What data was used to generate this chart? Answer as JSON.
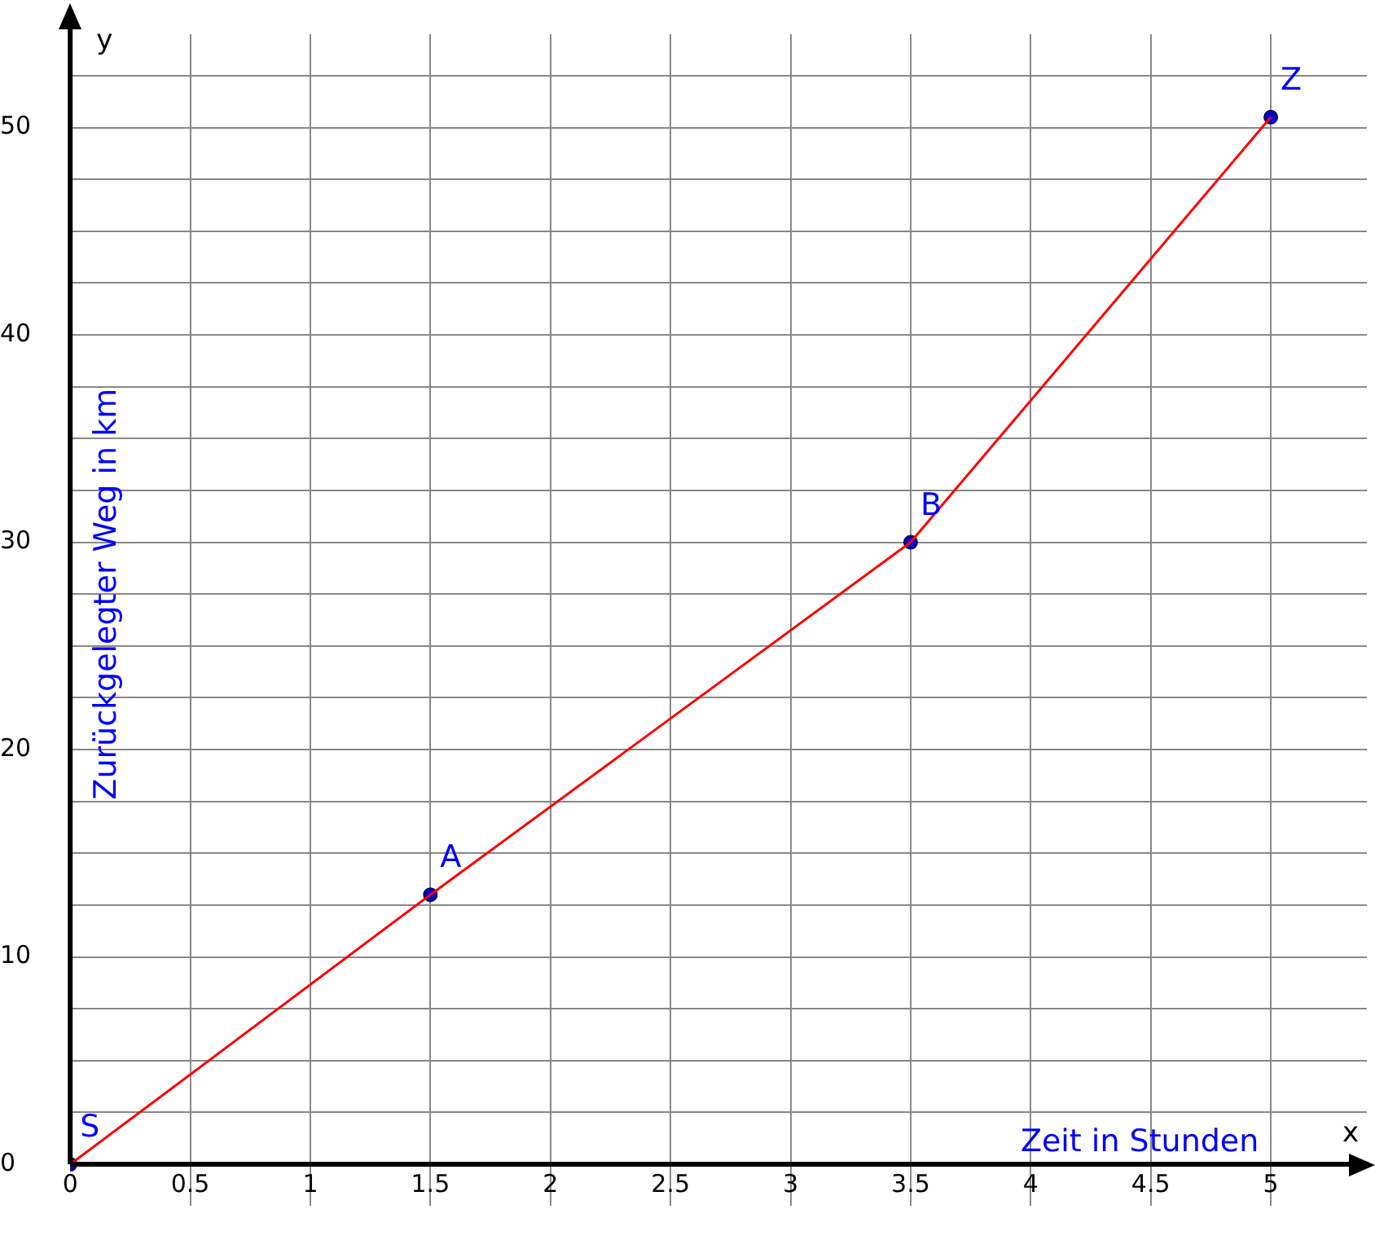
{
  "chart_data": {
    "type": "line",
    "xlabel": "Zeit in Stunden",
    "ylabel": "Zurückgelegter Weg in km",
    "x": [
      0,
      1.5,
      3.5,
      5
    ],
    "series": [
      {
        "type": "line",
        "color": "#ff0000",
        "values": [
          0,
          13,
          30,
          50.5
        ],
        "marker": "none"
      },
      {
        "type": "scatter",
        "color": "#0000cc",
        "values": [
          0,
          13,
          30,
          50.5
        ],
        "marker": "circle"
      }
    ],
    "xlim": [
      0,
      5.4
    ],
    "ylim": [
      -2,
      54.5
    ],
    "xticks": [
      0,
      0.5,
      1,
      1.5,
      2,
      2.5,
      3,
      3.5,
      4,
      4.5,
      5
    ],
    "yticks": [
      0,
      {
        "value": 2.5,
        "label": null
      },
      {
        "value": 5,
        "label": null
      },
      {
        "value": 7.5,
        "label": null
      },
      10,
      {
        "value": 12.5,
        "label": null
      },
      {
        "value": 15,
        "label": null
      },
      {
        "value": 17.5,
        "label": null
      },
      20,
      {
        "value": 22.5,
        "label": null
      },
      {
        "value": 25,
        "label": null
      },
      {
        "value": 27.5,
        "label": null
      },
      30,
      {
        "value": 32.5,
        "label": null
      },
      {
        "value": 35,
        "label": null
      },
      {
        "value": 37.5,
        "label": null
      },
      40,
      {
        "value": 42.5,
        "label": null
      },
      {
        "value": 45,
        "label": null
      },
      {
        "value": 47.5,
        "label": null
      },
      50,
      {
        "value": 52.5,
        "label": null
      }
    ],
    "grid": true,
    "legend": false,
    "annotations": [
      {
        "text": "S",
        "x": 0,
        "y": 0
      },
      {
        "text": "A",
        "x": 1.5,
        "y": 13
      },
      {
        "text": "B",
        "x": 3.5,
        "y": 30
      },
      {
        "text": "Z",
        "x": 5,
        "y": 50.5
      },
      "x",
      "y"
    ]
  }
}
